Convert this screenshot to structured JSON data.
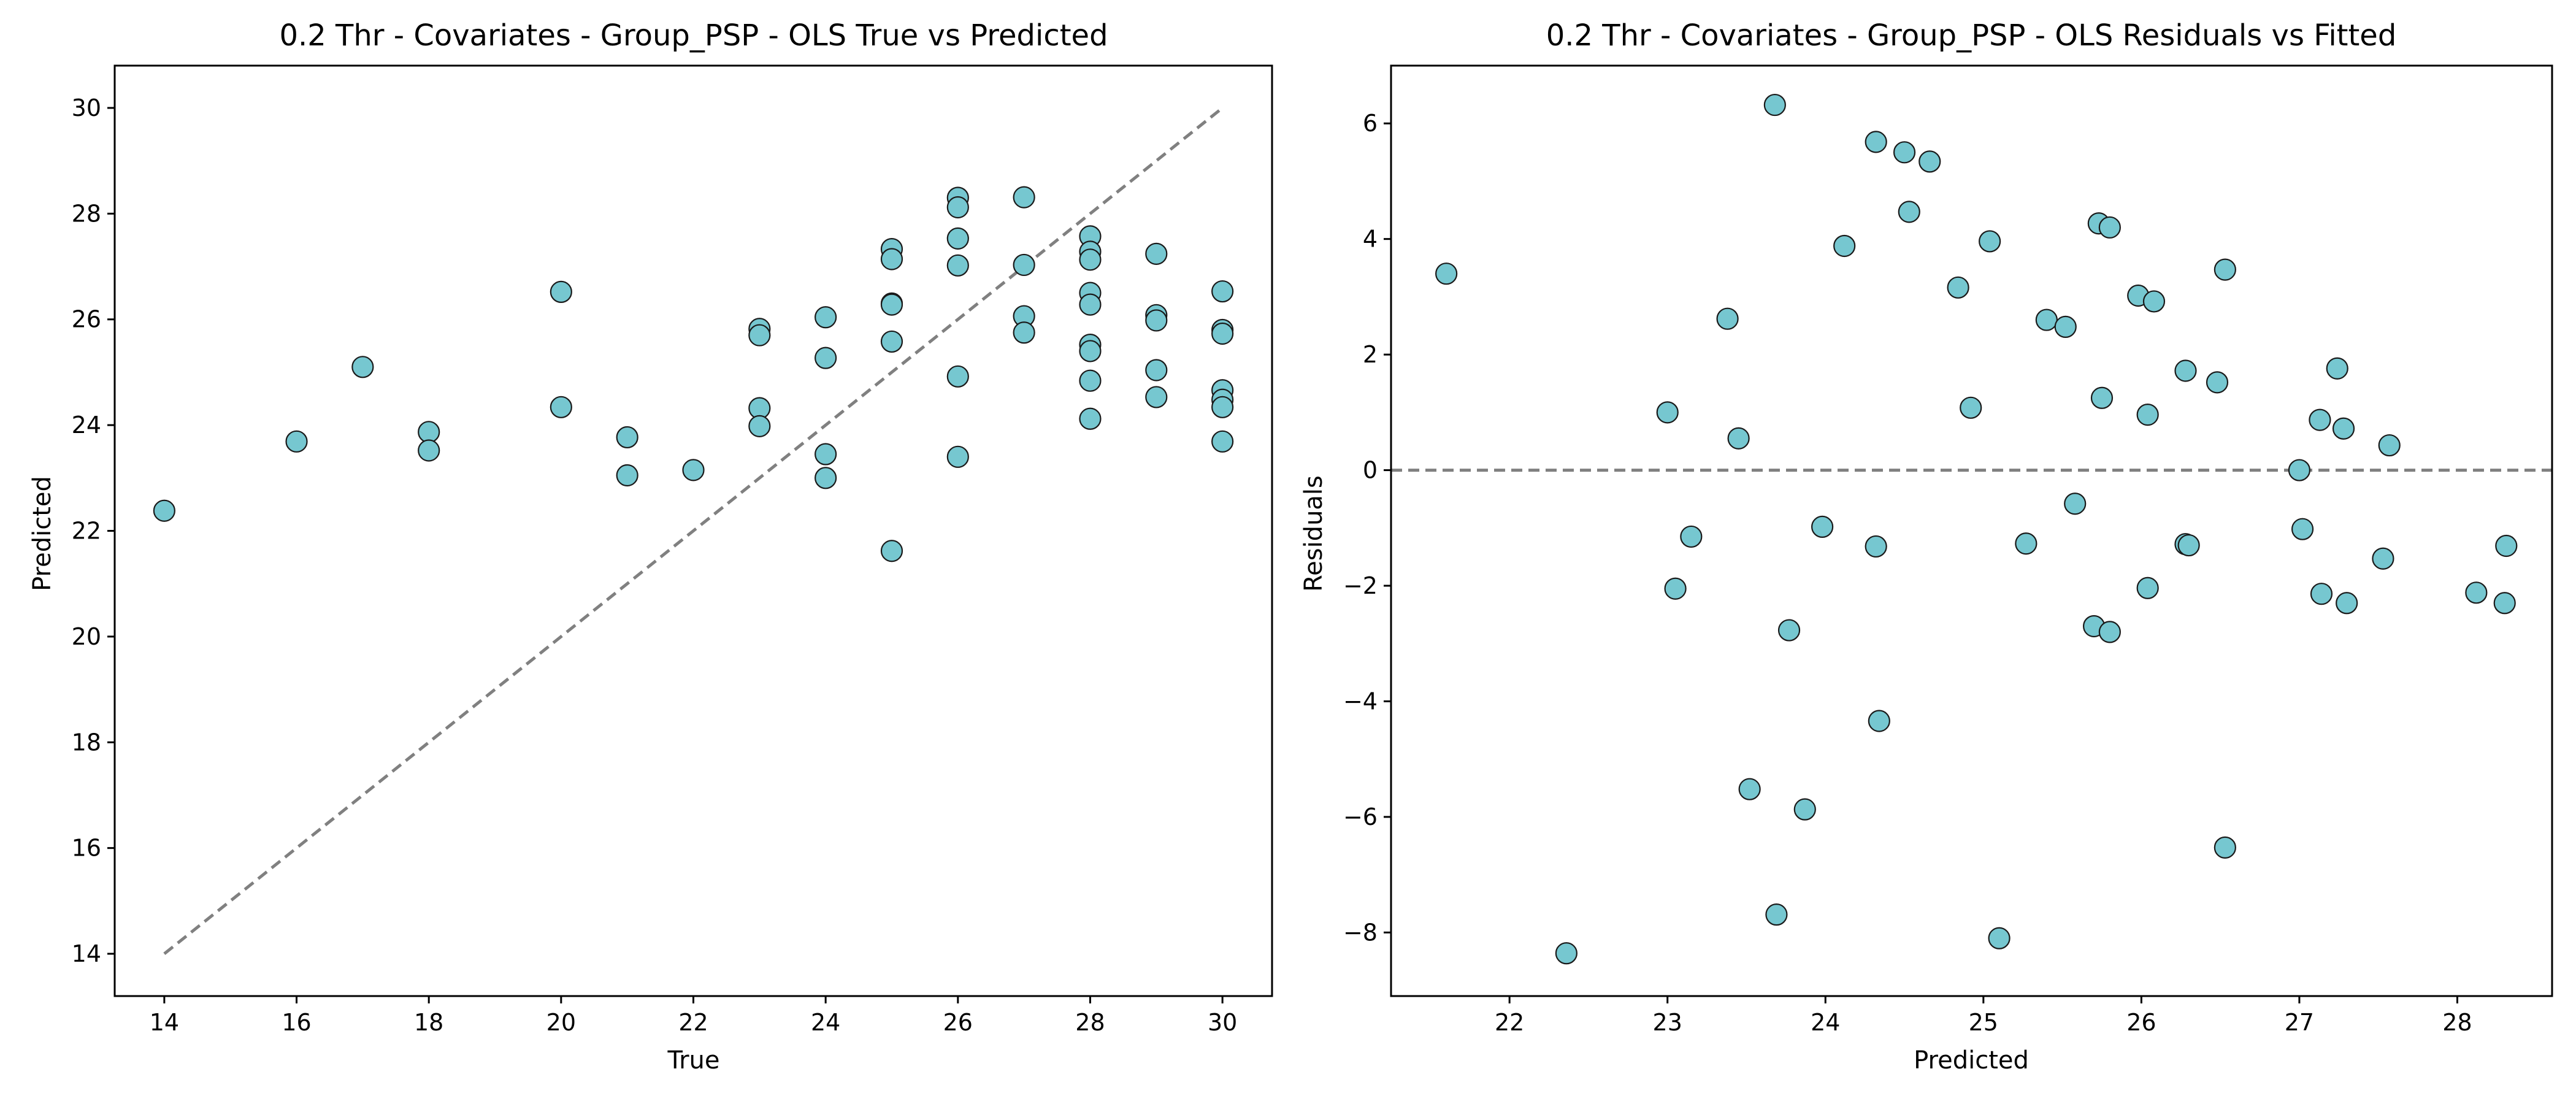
{
  "chart_data": [
    {
      "type": "scatter",
      "title": "0.2 Thr - Covariates - Group_PSP - OLS True vs Predicted",
      "xlabel": "True",
      "ylabel": "Predicted",
      "xlim": [
        13.25,
        30.75
      ],
      "ylim": [
        13.2,
        30.8
      ],
      "xticks": [
        14,
        16,
        18,
        20,
        22,
        24,
        26,
        28,
        30
      ],
      "yticks": [
        14,
        16,
        18,
        20,
        22,
        24,
        26,
        28,
        30
      ],
      "grid": false,
      "point_color": "#76c7d0",
      "reference_line": {
        "style": "dashed",
        "color": "#808080",
        "from": [
          14,
          14
        ],
        "to": [
          30,
          30
        ]
      },
      "points": [
        [
          14,
          22.38
        ],
        [
          16,
          23.69
        ],
        [
          17,
          25.1
        ],
        [
          18,
          23.87
        ],
        [
          18,
          23.52
        ],
        [
          20,
          26.52
        ],
        [
          20,
          24.34
        ],
        [
          21,
          23.77
        ],
        [
          21,
          23.05
        ],
        [
          22,
          23.15
        ],
        [
          23,
          25.82
        ],
        [
          23,
          25.7
        ],
        [
          23,
          24.32
        ],
        [
          23,
          23.98
        ],
        [
          24,
          26.04
        ],
        [
          24,
          25.27
        ],
        [
          24,
          23.45
        ],
        [
          24,
          23.0
        ],
        [
          25,
          27.33
        ],
        [
          25,
          27.14
        ],
        [
          25,
          26.3
        ],
        [
          25,
          26.28
        ],
        [
          25,
          25.58
        ],
        [
          25,
          21.62
        ],
        [
          26,
          28.3
        ],
        [
          26,
          28.12
        ],
        [
          26,
          27.53
        ],
        [
          26,
          27.02
        ],
        [
          26,
          24.92
        ],
        [
          26,
          23.4
        ],
        [
          27,
          28.31
        ],
        [
          27,
          27.03
        ],
        [
          27,
          26.06
        ],
        [
          27,
          25.75
        ],
        [
          28,
          27.57
        ],
        [
          28,
          27.28
        ],
        [
          28,
          27.13
        ],
        [
          28,
          26.5
        ],
        [
          28,
          26.28
        ],
        [
          28,
          25.52
        ],
        [
          28,
          25.4
        ],
        [
          28,
          24.84
        ],
        [
          28,
          24.12
        ],
        [
          29,
          27.24
        ],
        [
          29,
          26.08
        ],
        [
          29,
          25.98
        ],
        [
          29,
          25.04
        ],
        [
          29,
          24.53
        ],
        [
          30,
          26.53
        ],
        [
          30,
          25.8
        ],
        [
          30,
          25.73
        ],
        [
          30,
          24.66
        ],
        [
          30,
          24.48
        ],
        [
          30,
          24.34
        ],
        [
          30,
          23.69
        ]
      ]
    },
    {
      "type": "scatter",
      "title": "0.2 Thr - Covariates - Group_PSP - OLS Residuals vs Fitted",
      "xlabel": "Predicted",
      "ylabel": "Residuals",
      "xlim": [
        21.25,
        28.6
      ],
      "ylim": [
        -9.1,
        7.0
      ],
      "xticks": [
        22,
        23,
        24,
        25,
        26,
        27,
        28
      ],
      "yticks": [
        -8,
        -6,
        -4,
        -2,
        0,
        2,
        4,
        6
      ],
      "grid": false,
      "point_color": "#76c7d0",
      "reference_line": {
        "style": "dashed",
        "color": "#808080",
        "y": 0
      },
      "points": [
        [
          21.6,
          3.4
        ],
        [
          22.36,
          -8.36
        ],
        [
          23.0,
          1.0
        ],
        [
          23.05,
          -2.05
        ],
        [
          23.15,
          -1.15
        ],
        [
          23.38,
          2.62
        ],
        [
          23.45,
          0.55
        ],
        [
          23.52,
          -5.52
        ],
        [
          23.68,
          6.32
        ],
        [
          23.69,
          -7.69
        ],
        [
          23.77,
          -2.77
        ],
        [
          23.87,
          -5.87
        ],
        [
          23.98,
          -0.98
        ],
        [
          24.12,
          3.88
        ],
        [
          24.32,
          5.68
        ],
        [
          24.32,
          -1.32
        ],
        [
          24.34,
          -4.34
        ],
        [
          24.5,
          5.5
        ],
        [
          24.53,
          4.47
        ],
        [
          24.66,
          5.34
        ],
        [
          24.84,
          3.16
        ],
        [
          24.92,
          1.08
        ],
        [
          25.04,
          3.96
        ],
        [
          25.1,
          -8.1
        ],
        [
          25.27,
          -1.27
        ],
        [
          25.4,
          2.6
        ],
        [
          25.52,
          2.48
        ],
        [
          25.58,
          -0.58
        ],
        [
          25.7,
          -2.7
        ],
        [
          25.73,
          4.27
        ],
        [
          25.75,
          1.25
        ],
        [
          25.8,
          4.2
        ],
        [
          25.8,
          -2.8
        ],
        [
          25.98,
          3.02
        ],
        [
          26.04,
          -2.04
        ],
        [
          26.04,
          0.96
        ],
        [
          26.08,
          2.92
        ],
        [
          26.28,
          1.72
        ],
        [
          26.28,
          -1.28
        ],
        [
          26.3,
          -1.3
        ],
        [
          26.48,
          1.52
        ],
        [
          26.53,
          3.47
        ],
        [
          26.53,
          -6.53
        ],
        [
          27.0,
          0.0
        ],
        [
          27.02,
          -1.02
        ],
        [
          27.13,
          0.87
        ],
        [
          27.14,
          -2.14
        ],
        [
          27.24,
          1.76
        ],
        [
          27.28,
          0.72
        ],
        [
          27.3,
          -2.3
        ],
        [
          27.53,
          -1.53
        ],
        [
          27.57,
          0.43
        ],
        [
          28.12,
          -2.12
        ],
        [
          28.3,
          -2.3
        ],
        [
          28.31,
          -1.31
        ]
      ]
    }
  ]
}
